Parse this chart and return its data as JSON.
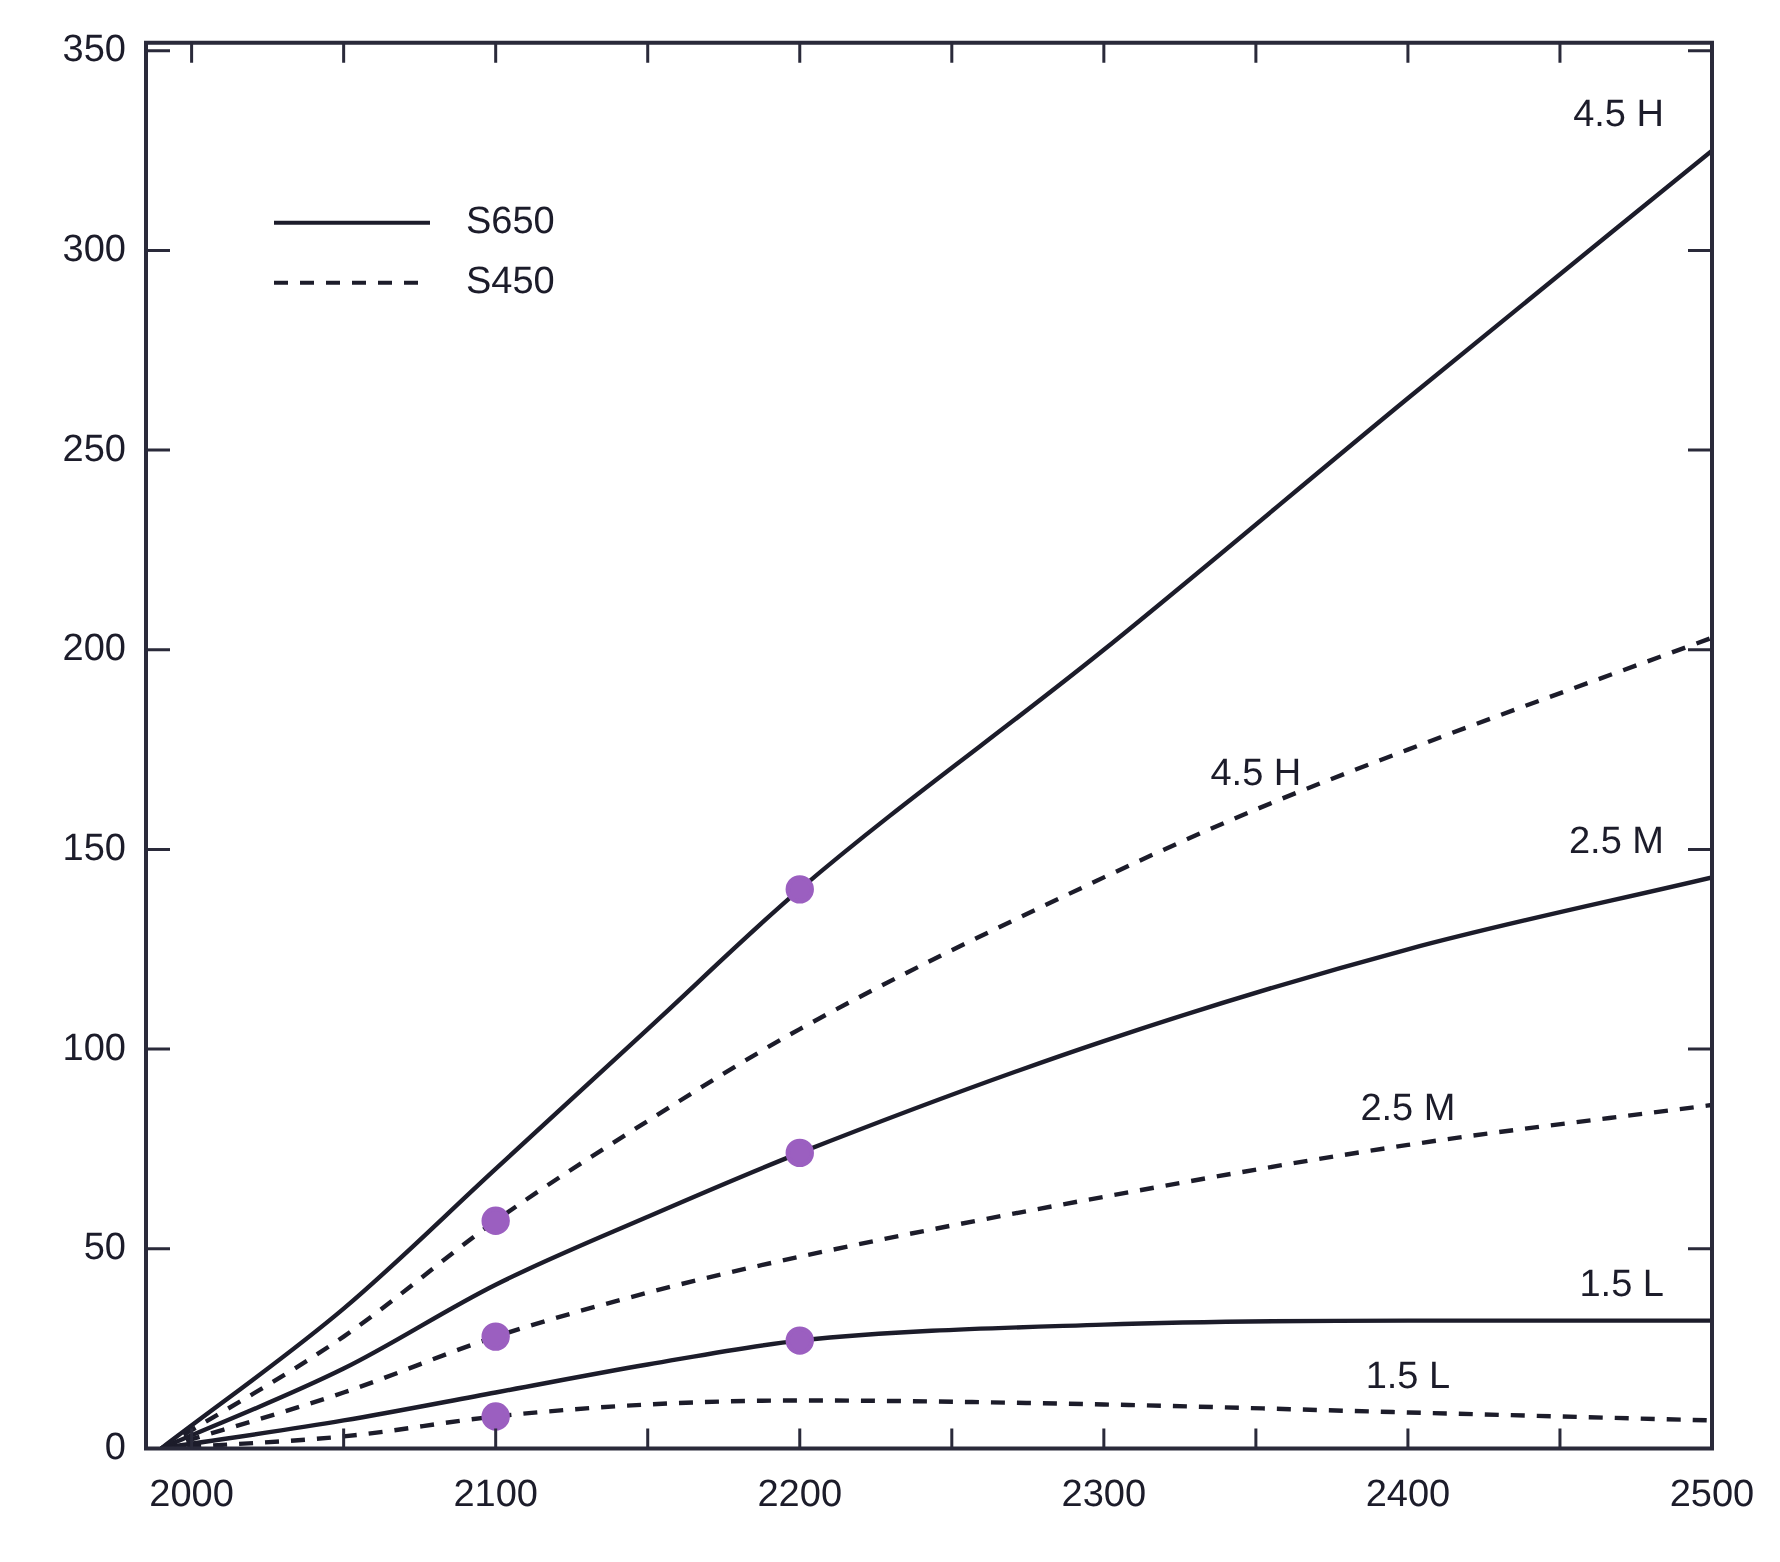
{
  "chart_data": {
    "type": "line",
    "legend": "top left",
    "grid": false,
    "xlim": [
      1985,
      2500
    ],
    "ylim": [
      0,
      352
    ],
    "xticks": [
      2000,
      {
        "value": 2050,
        "label": null
      },
      2100,
      {
        "value": 2150,
        "label": null
      },
      2200,
      {
        "value": 2250,
        "label": null
      },
      2300,
      {
        "value": 2350,
        "label": null
      },
      2400,
      {
        "value": 2450,
        "label": null
      },
      2500
    ],
    "yticks": [
      0,
      50,
      100,
      150,
      200,
      250,
      300,
      350
    ],
    "series": [
      {
        "name": "S650",
        "color": "#1c1c2a",
        "line_style": "solid",
        "marker": "none",
        "x": [
          1990,
          2050,
          2100,
          2150,
          2200,
          2300,
          2400,
          2500
        ],
        "values": [
          0,
          35,
          70,
          105,
          140,
          200,
          263,
          325
        ]
      },
      {
        "name": "S450",
        "color": "#1c1c2a",
        "line_style": "dashed",
        "marker": "none",
        "x": [
          1990,
          2050,
          2100,
          2150,
          2200,
          2300,
          2350,
          2400,
          2500
        ],
        "values": [
          0,
          28,
          57,
          82,
          105,
          143,
          160,
          175,
          203
        ]
      },
      {
        "color": "#1c1c2a",
        "line_style": "solid",
        "marker": "none",
        "x": [
          1990,
          2050,
          2100,
          2150,
          2200,
          2300,
          2400,
          2500
        ],
        "values": [
          0,
          20,
          41,
          58,
          74,
          102,
          125,
          143
        ]
      },
      {
        "color": "#1c1c2a",
        "line_style": "dashed",
        "marker": "none",
        "x": [
          1990,
          2050,
          2100,
          2150,
          2200,
          2300,
          2400,
          2500
        ],
        "values": [
          0,
          14,
          28,
          39,
          48,
          63,
          76,
          86
        ]
      },
      {
        "color": "#1c1c2a",
        "line_style": "solid",
        "marker": "none",
        "x": [
          1990,
          2050,
          2100,
          2150,
          2200,
          2300,
          2400,
          2500
        ],
        "values": [
          0,
          7,
          14,
          21,
          27,
          31,
          32,
          32
        ]
      },
      {
        "color": "#1c1c2a",
        "line_style": "dashed",
        "marker": "none",
        "x": [
          1990,
          2050,
          2100,
          2150,
          2200,
          2300,
          2400,
          2500
        ],
        "values": [
          0,
          3,
          8,
          11,
          12,
          11,
          9,
          7
        ]
      },
      {
        "type": "scatter",
        "color": "#9b5fc0",
        "marker": "circle",
        "x": [
          2200,
          2100,
          2200,
          2100,
          2200,
          2100
        ],
        "values": [
          140,
          57,
          74,
          28,
          27,
          8
        ]
      }
    ],
    "annotations": [
      {
        "text": "4.5 H",
        "x": 2500,
        "y": 325
      },
      {
        "text": "4.5 H",
        "x": 2350,
        "y": 160
      },
      {
        "text": "2.5 M",
        "x": 2500,
        "y": 143
      },
      {
        "text": "2.5 M",
        "x": 2400,
        "y": 76
      },
      {
        "text": "1.5 L",
        "x": 2500,
        "y": 32
      },
      {
        "text": "1.5 L",
        "x": 2400,
        "y": 9
      }
    ]
  }
}
